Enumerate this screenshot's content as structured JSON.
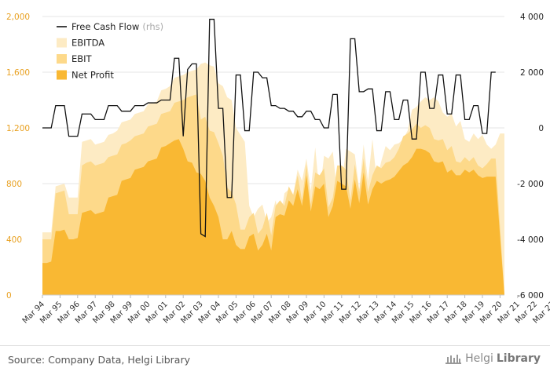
{
  "footer": {
    "source": "Source: Company Data, Helgi Library",
    "brand_prefix": "Helgi",
    "brand_suffix": "Library"
  },
  "colors": {
    "ebitda": "#FDEBC4",
    "ebit": "#FDD98A",
    "net_profit": "#F9B833",
    "fcf": "#111111",
    "left_axis": "#E8A020",
    "grid": "#E5E5E5"
  },
  "chart_data": {
    "type": "area",
    "legend": {
      "position": "top-left",
      "items": [
        {
          "label": "Free Cash Flow",
          "note": "(rhs)",
          "kind": "line"
        },
        {
          "label": "EBITDA",
          "note": "",
          "kind": "area"
        },
        {
          "label": "EBIT",
          "note": "",
          "kind": "area"
        },
        {
          "label": "Net Profit",
          "note": "",
          "kind": "area"
        }
      ]
    },
    "grid": true,
    "y_left": {
      "min": 0,
      "max": 2000,
      "ticks": [
        0,
        400,
        800,
        1200,
        1600,
        2000
      ],
      "tick_labels": [
        "0",
        "400",
        "800",
        "1,200",
        "1,600",
        "2,000"
      ]
    },
    "y_right": {
      "min": -6000,
      "max": 4000,
      "ticks": [
        -6000,
        -4000,
        -2000,
        0,
        2000,
        4000
      ],
      "tick_labels": [
        "-6 000",
        "-4 000",
        "-2 000",
        "0",
        "2 000",
        "4 000"
      ]
    },
    "x_tick_labels": [
      "Mar 94",
      "Mar 95",
      "Mar 96",
      "Mar 97",
      "Mar 98",
      "Mar 99",
      "Mar 00",
      "Mar 01",
      "Mar 02",
      "Mar 03",
      "Mar 04",
      "Mar 05",
      "Mar 06",
      "Mar 07",
      "Mar 08",
      "Mar 09",
      "Mar 10",
      "Mar 11",
      "Mar 12",
      "Mar 13",
      "Mar 14",
      "Mar 15",
      "Mar 16",
      "Mar 17",
      "Mar 18",
      "Mar 19",
      "Mar 20",
      "Mar 21",
      "Mar 22",
      "Mar 23"
    ],
    "quarters_start": "Mar 94",
    "series": [
      {
        "name": "EBITDA",
        "axis": "left",
        "values": [
          450,
          450,
          450,
          780,
          790,
          800,
          700,
          700,
          700,
          1100,
          1110,
          1120,
          1080,
          1090,
          1100,
          1150,
          1160,
          1180,
          1240,
          1250,
          1260,
          1300,
          1310,
          1320,
          1370,
          1380,
          1390,
          1470,
          1480,
          1500,
          1560,
          1570,
          1580,
          1600,
          1610,
          1620,
          1660,
          1670,
          1650,
          1640,
          1520,
          1500,
          1420,
          1400,
          1200,
          1150,
          1100,
          640,
          560,
          620,
          650,
          520,
          560,
          680,
          520,
          730,
          760,
          720,
          900,
          820,
          980,
          750,
          1060,
          720,
          1000,
          980,
          1030,
          720,
          790,
          1050,
          1030,
          1010,
          760,
          1080,
          820,
          1120,
          820,
          960,
          1070,
          1040,
          1080,
          1090,
          1120,
          1180,
          1330,
          1350,
          1390,
          1420,
          1400,
          1420,
          1390,
          1310,
          1280,
          1300,
          1210,
          1250,
          1120,
          1100,
          1160,
          1120,
          1150,
          1080,
          1050,
          1080,
          1160,
          1160
        ]
      },
      {
        "name": "EBIT",
        "axis": "left",
        "values": [
          400,
          400,
          400,
          730,
          740,
          750,
          580,
          580,
          580,
          930,
          950,
          960,
          930,
          940,
          950,
          990,
          1000,
          1010,
          1080,
          1090,
          1110,
          1140,
          1150,
          1160,
          1210,
          1220,
          1230,
          1300,
          1310,
          1320,
          1380,
          1390,
          1400,
          1420,
          1430,
          1440,
          1260,
          1280,
          1180,
          1170,
          1090,
          1000,
          770,
          740,
          650,
          470,
          470,
          560,
          590,
          440,
          480,
          590,
          430,
          640,
          680,
          640,
          780,
          720,
          860,
          680,
          940,
          650,
          880,
          860,
          910,
          630,
          700,
          930,
          930,
          900,
          680,
          940,
          740,
          980,
          740,
          860,
          930,
          910,
          950,
          960,
          990,
          1050,
          1140,
          1160,
          1190,
          1230,
          1200,
          1220,
          1200,
          1120,
          1110,
          1120,
          1040,
          1070,
          960,
          950,
          990,
          960,
          990,
          930,
          910,
          940,
          980,
          980
        ]
      },
      {
        "name": "Net Profit",
        "axis": "left",
        "values": [
          230,
          230,
          240,
          460,
          460,
          470,
          400,
          400,
          410,
          590,
          600,
          610,
          580,
          590,
          600,
          700,
          710,
          720,
          820,
          830,
          840,
          900,
          910,
          920,
          960,
          970,
          980,
          1060,
          1070,
          1090,
          1110,
          1120,
          1050,
          960,
          950,
          880,
          870,
          820,
          700,
          640,
          560,
          400,
          400,
          460,
          360,
          330,
          330,
          420,
          440,
          320,
          360,
          440,
          320,
          560,
          580,
          570,
          680,
          640,
          760,
          640,
          860,
          600,
          780,
          760,
          800,
          560,
          640,
          820,
          800,
          780,
          620,
          830,
          660,
          880,
          650,
          760,
          820,
          800,
          820,
          830,
          850,
          890,
          930,
          950,
          990,
          1050,
          1050,
          1040,
          1020,
          960,
          950,
          960,
          880,
          900,
          860,
          860,
          900,
          880,
          900,
          860,
          840,
          850,
          850,
          850
        ]
      },
      {
        "name": "Free Cash Flow",
        "axis": "right",
        "values": [
          0,
          0,
          0,
          800,
          800,
          800,
          -300,
          -300,
          -300,
          500,
          500,
          500,
          300,
          300,
          300,
          800,
          800,
          800,
          600,
          600,
          600,
          800,
          800,
          800,
          900,
          900,
          900,
          1000,
          1000,
          1000,
          2500,
          2500,
          -300,
          2100,
          2300,
          2300,
          -3800,
          -3900,
          3900,
          3900,
          700,
          700,
          -2500,
          -2500,
          1900,
          1900,
          -100,
          -100,
          2000,
          2000,
          1800,
          1800,
          800,
          800,
          700,
          700,
          600,
          600,
          400,
          400,
          600,
          600,
          300,
          300,
          0,
          0,
          1200,
          1200,
          -2200,
          -2200,
          3200,
          3200,
          1300,
          1300,
          1400,
          1400,
          -100,
          -100,
          1300,
          1300,
          300,
          300,
          1000,
          1000,
          -400,
          -400,
          2000,
          2000,
          700,
          700,
          1900,
          1900,
          500,
          500,
          1900,
          1900,
          300,
          300,
          800,
          800,
          -200,
          -200,
          2000,
          2000
        ]
      }
    ]
  }
}
